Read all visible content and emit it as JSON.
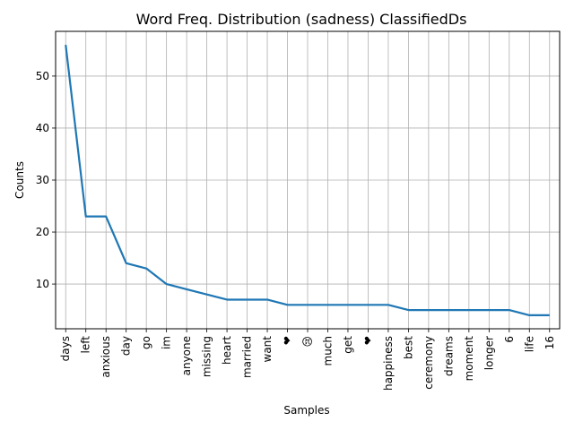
{
  "chart_data": {
    "type": "line",
    "title": "Word Freq. Distribution (sadness) ClassifiedDs",
    "xlabel": "Samples",
    "ylabel": "Counts",
    "categories": [
      "days",
      "left",
      "anxious",
      "day",
      "go",
      "im",
      "anyone",
      "missing",
      "heart",
      "married",
      "want",
      "❤",
      "😢",
      "much",
      "get",
      "❤",
      "happiness",
      "best",
      "ceremony",
      "dreams",
      "moment",
      "longer",
      "6",
      "life",
      "16"
    ],
    "series": [
      {
        "values": [
          56,
          23,
          23,
          14,
          13,
          10,
          9,
          8,
          7,
          7,
          7,
          6,
          6,
          6,
          6,
          6,
          6,
          5,
          5,
          5,
          5,
          5,
          5,
          4,
          4
        ]
      }
    ],
    "yticks": [
      10,
      20,
      30,
      40,
      50
    ],
    "ylim": [
      1.4,
      58.6
    ],
    "grid": true,
    "line_color": "#1f77b4"
  }
}
